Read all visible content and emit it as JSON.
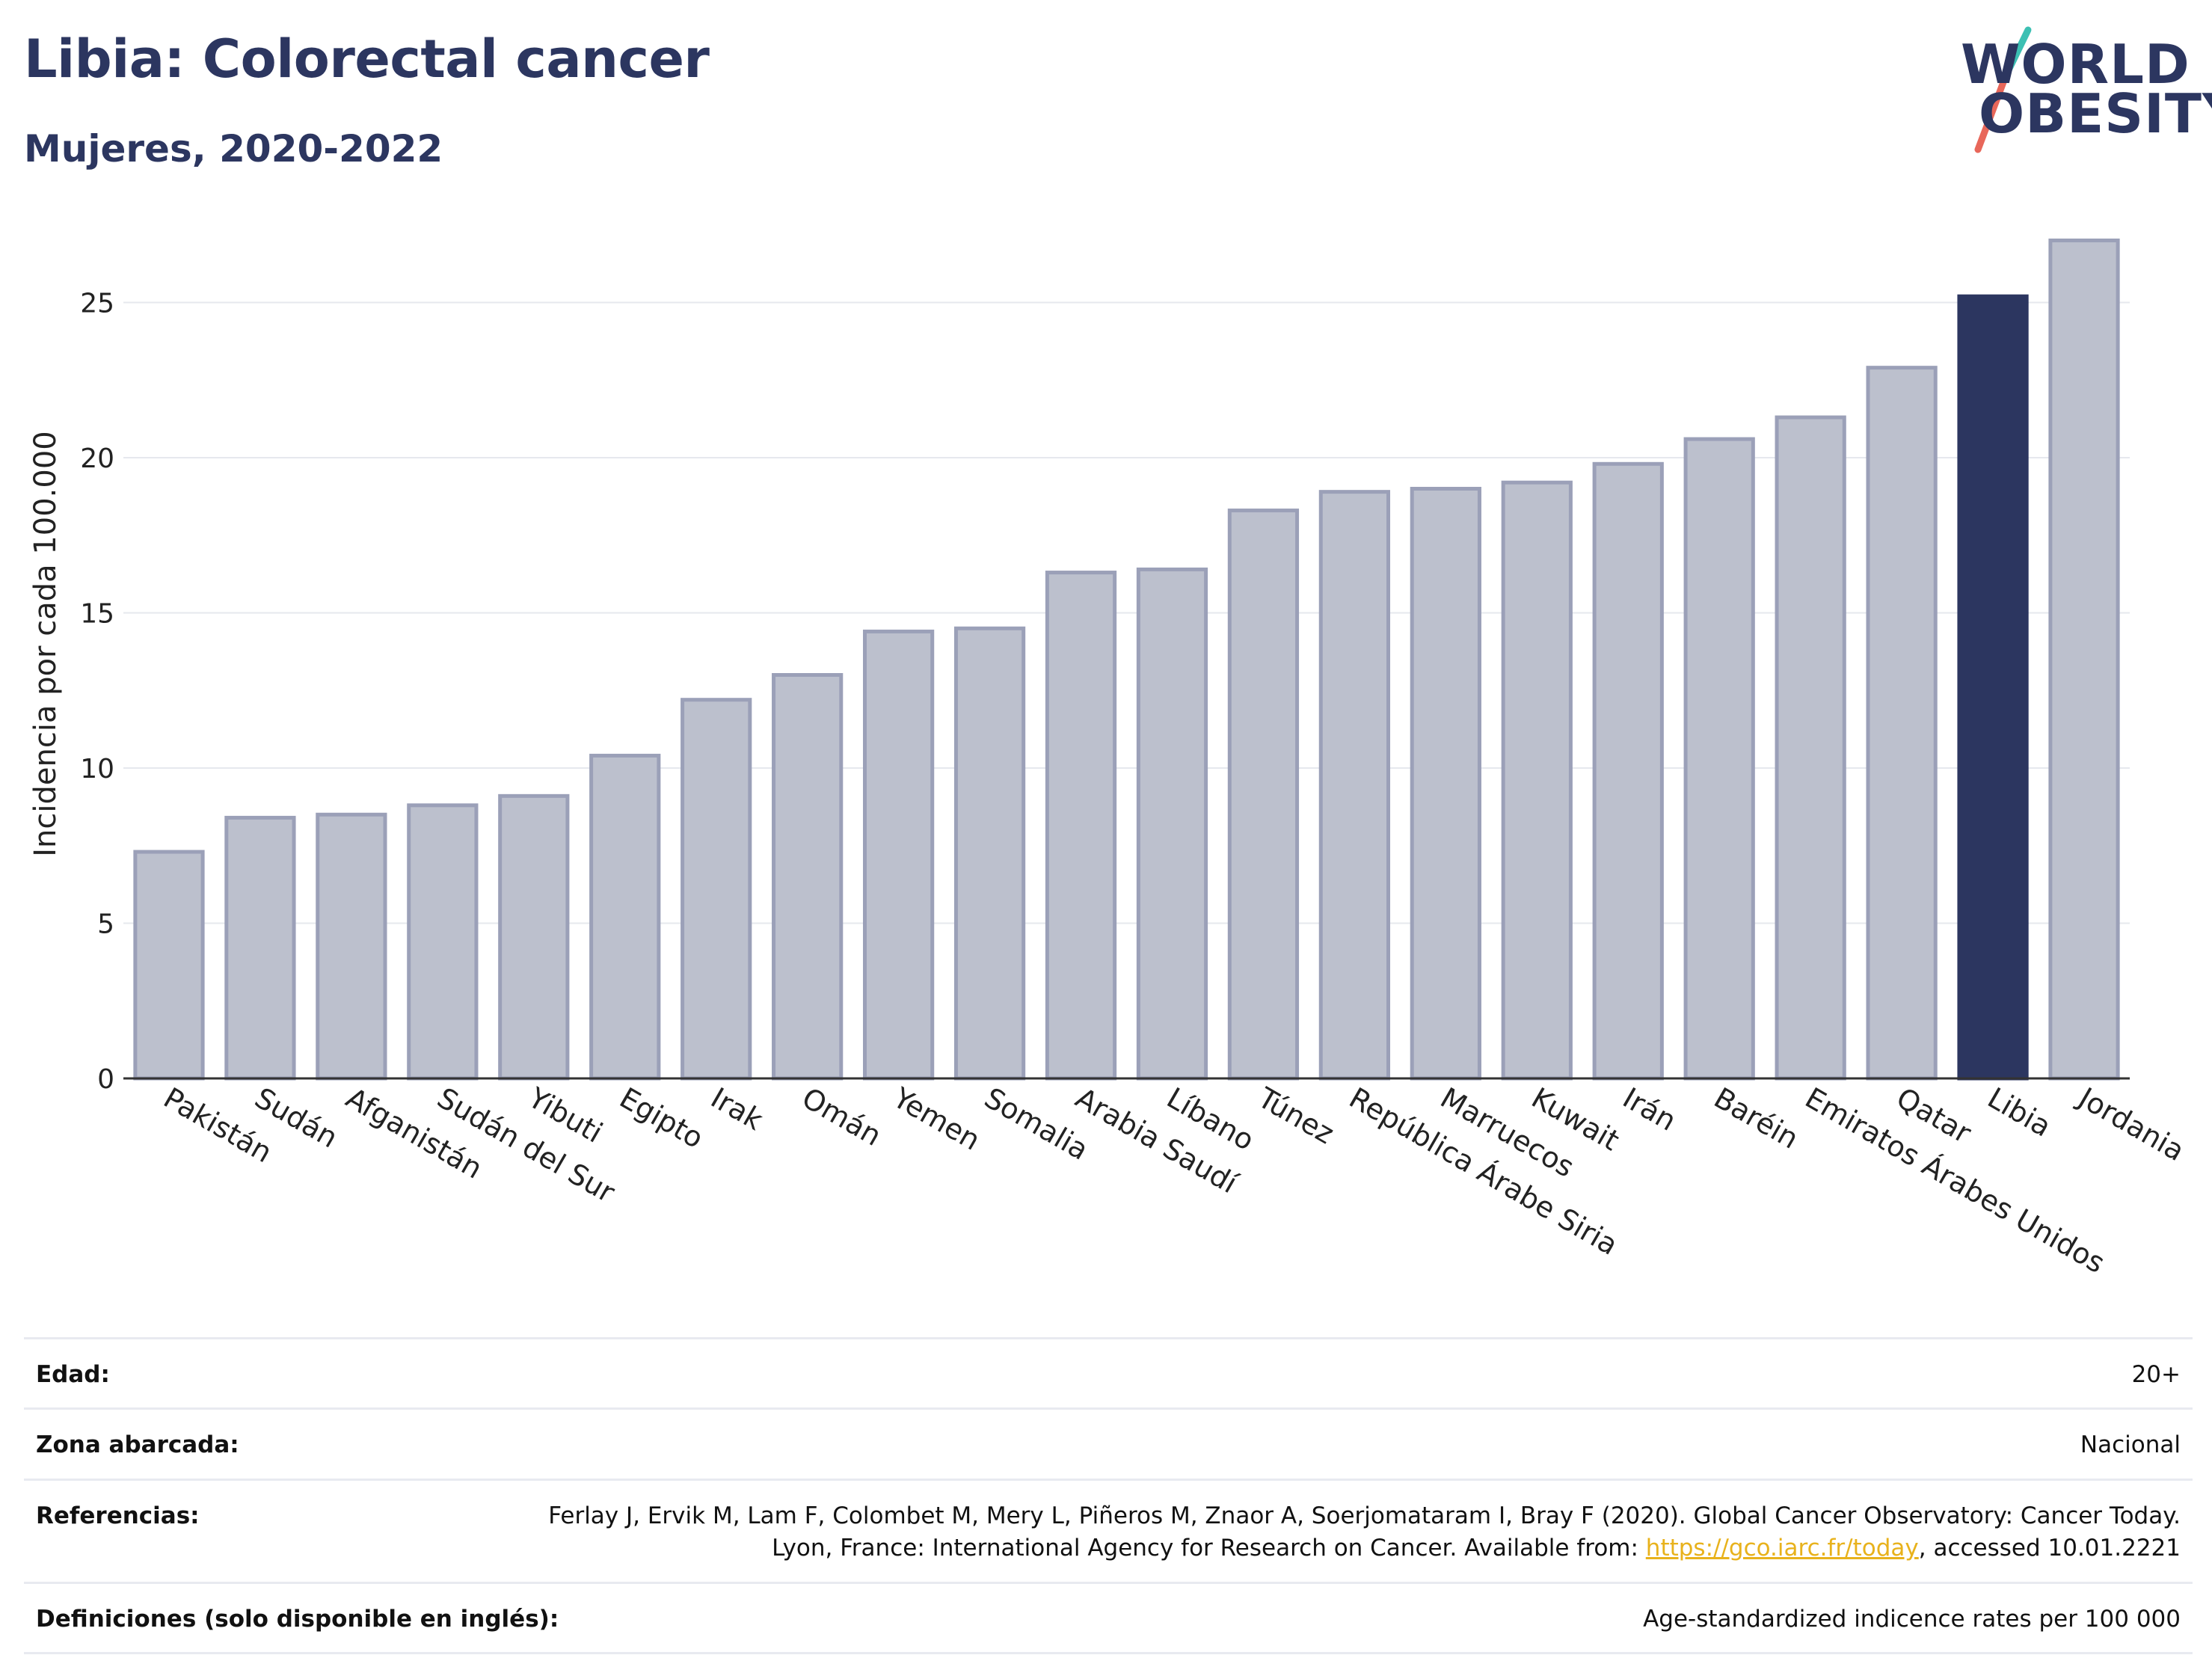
{
  "header": {
    "title": "Libia: Colorectal cancer",
    "subtitle": "Mujeres, 2020-2022"
  },
  "logo": {
    "line1": "WORLD",
    "line2": "OBESITY",
    "colors": {
      "text": "#2c3660",
      "slash_top": "#3cc0b3",
      "slash_bottom": "#e8675a"
    }
  },
  "chart_data": {
    "type": "bar",
    "ylabel": "Incidencia por cada 100.000",
    "xlabel": "",
    "ylim": [
      0,
      28
    ],
    "yticks": [
      0,
      5,
      10,
      15,
      20,
      25
    ],
    "grid": true,
    "categories": [
      "Pakistán",
      "Sudán",
      "Afganistán",
      "Sudán del Sur",
      "Yibuti",
      "Egipto",
      "Irak",
      "Omán",
      "Yemen",
      "Somalia",
      "Arabia Saudí",
      "Líbano",
      "Túnez",
      "República Árabe Siria",
      "Marruecos",
      "Kuwait",
      "Irán",
      "Baréin",
      "Emiratos Árabes Unidos",
      "Qatar",
      "Libia",
      "Jordania"
    ],
    "values": [
      7.3,
      8.4,
      8.5,
      8.8,
      9.1,
      10.4,
      12.2,
      13.0,
      14.4,
      14.5,
      16.3,
      16.4,
      18.3,
      18.9,
      19.0,
      19.2,
      19.8,
      20.6,
      21.3,
      22.9,
      25.2,
      27.0
    ],
    "highlight": "Libia",
    "colors": {
      "bar": "#bcc0cd",
      "bar_border": "#9ba0b8",
      "highlight": "#2c3660",
      "grid": "#e6e8ee",
      "axis": "#333333"
    }
  },
  "info": [
    {
      "label": "Edad:",
      "value": "20+"
    },
    {
      "label": "Zona abarcada:",
      "value": "Nacional"
    },
    {
      "label": "Referencias:",
      "value_part1": "Ferlay J, Ervik M, Lam F, Colombet M, Mery L, Piñeros M, Znaor A, Soerjomataram I, Bray F (2020). Global Cancer Observatory: Cancer Today. Lyon, France: International Agency for Research on Cancer. Available from: ",
      "link": "https://gco.iarc.fr/today",
      "value_part2": ", accessed 10.01.2221"
    },
    {
      "label": "Definiciones (solo disponible en inglés):",
      "value": "Age-standardized indicence rates per 100 000"
    }
  ]
}
